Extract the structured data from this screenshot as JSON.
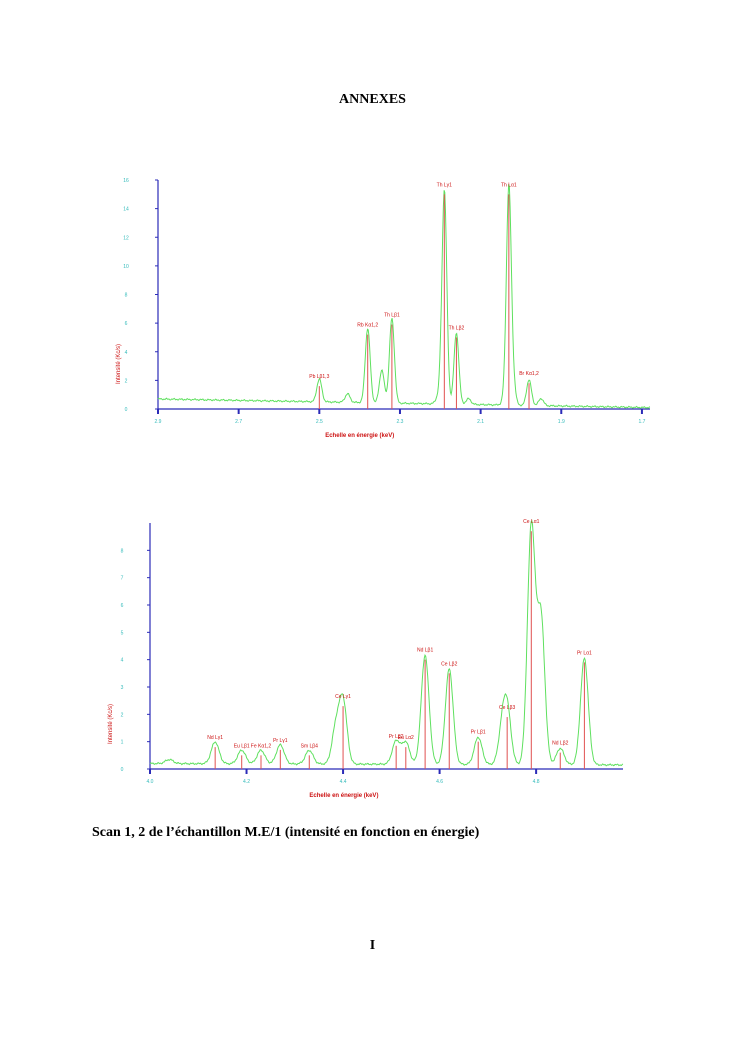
{
  "page": {
    "title": "ANNEXES",
    "caption": "Scan 1, 2 de l’échantillon M.E/1 (intensité en fonction en énergie)",
    "page_number": "I"
  },
  "colors": {
    "axis": "#2b2bb8",
    "spectrum": "#5fe05f",
    "marker": "#e05050",
    "label": "#cc1111",
    "tick_label": "#33bbbb"
  },
  "chart_data": [
    {
      "type": "line",
      "title": "Scan 1",
      "xlabel": "Echelle en énergie (keV)",
      "ylabel": "Intensité (Kc/s)",
      "xlim": [
        2.9,
        1.68
      ],
      "ylim": [
        0,
        16
      ],
      "xticks": [
        2.9,
        2.7,
        2.5,
        2.3,
        2.1,
        1.9,
        1.7
      ],
      "xtick_labels": [
        "2.9",
        "2.7",
        "2.5",
        "2.3",
        "2.1",
        "1.9",
        "1.7"
      ],
      "yticks": [
        0,
        2,
        4,
        6,
        8,
        10,
        12,
        14,
        16
      ],
      "ytick_labels": [
        "0",
        "2",
        "4",
        "6",
        "8",
        "10",
        "12",
        "14",
        "16"
      ],
      "baseline": [
        0.7,
        0.1
      ],
      "peaks": [
        {
          "label": "Pb Lβ1,3",
          "x": 2.5,
          "y": 1.6
        },
        {
          "label": "Rb Kα1,2",
          "x": 2.38,
          "y": 5.2
        },
        {
          "label": "Th Lβ1",
          "x": 2.32,
          "y": 5.9
        },
        {
          "label": "Th Lγ1",
          "x": 2.19,
          "y": 15.0
        },
        {
          "label": "Th Lβ2",
          "x": 2.16,
          "y": 5.0
        },
        {
          "label": "Th Lα1",
          "x": 2.03,
          "y": 15.0
        },
        {
          "label": "Br Kα1,2",
          "x": 1.98,
          "y": 1.8
        }
      ],
      "shoulders": [
        {
          "x": 2.43,
          "y": 0.6
        },
        {
          "x": 2.345,
          "y": 2.3
        },
        {
          "x": 2.205,
          "y": 0.5
        },
        {
          "x": 2.13,
          "y": 0.4
        },
        {
          "x": 2.04,
          "y": 0.5
        },
        {
          "x": 2.02,
          "y": 1.4
        },
        {
          "x": 1.95,
          "y": 0.5
        }
      ]
    },
    {
      "type": "line",
      "title": "Scan 2",
      "xlabel": "Echelle en énergie (keV)",
      "ylabel": "Intensité (Kc/s)",
      "xlim": [
        4.0,
        4.98
      ],
      "ylim": [
        0,
        9
      ],
      "xticks": [
        4.0,
        4.2,
        4.4,
        4.6,
        4.8
      ],
      "xtick_labels": [
        "4.0",
        "4.2",
        "4.4",
        "4.6",
        "4.8"
      ],
      "yticks": [
        0,
        1,
        2,
        3,
        4,
        5,
        6,
        7,
        8
      ],
      "ytick_labels": [
        "0",
        "1",
        "2",
        "3",
        "4",
        "5",
        "6",
        "7",
        "8"
      ],
      "baseline": [
        0.2,
        0.15
      ],
      "peaks": [
        {
          "label": "Nd Lγ1",
          "x": 4.135,
          "y": 0.8
        },
        {
          "label": "Eu Lβ1",
          "x": 4.19,
          "y": 0.5
        },
        {
          "label": "Fe Kα1,2",
          "x": 4.23,
          "y": 0.5
        },
        {
          "label": "Pr Lγ1",
          "x": 4.27,
          "y": 0.7
        },
        {
          "label": "Sm Lβ4",
          "x": 4.33,
          "y": 0.5
        },
        {
          "label": "Ce Lγ1",
          "x": 4.4,
          "y": 2.3
        },
        {
          "label": "Pr Lβ2",
          "x": 4.51,
          "y": 0.85
        },
        {
          "label": "Eu Lα2",
          "x": 4.53,
          "y": 0.8
        },
        {
          "label": "Nd Lβ1",
          "x": 4.57,
          "y": 4.0
        },
        {
          "label": "Ce Lβ2",
          "x": 4.62,
          "y": 3.5
        },
        {
          "label": "Pr Lβ1",
          "x": 4.68,
          "y": 1.0
        },
        {
          "label": "Ce Lβ3",
          "x": 4.74,
          "y": 1.9
        },
        {
          "label": "Ce Lα1",
          "x": 4.79,
          "y": 8.7
        },
        {
          "label": "Nd Lβ2",
          "x": 4.85,
          "y": 0.6
        },
        {
          "label": "Pr Lα1",
          "x": 4.9,
          "y": 3.9
        }
      ],
      "shoulders": [
        {
          "x": 4.385,
          "y": 1.3
        },
        {
          "x": 4.73,
          "y": 1.2
        },
        {
          "x": 4.81,
          "y": 5.4
        },
        {
          "x": 4.04,
          "y": 0.15
        }
      ]
    }
  ]
}
